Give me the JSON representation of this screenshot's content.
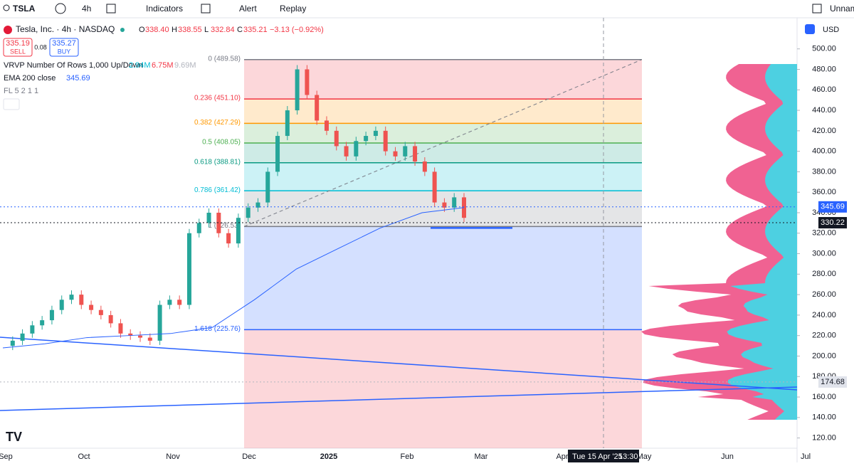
{
  "toolbar": {
    "symbol": "TSLA",
    "interval": "4h",
    "indicators": "Indicators",
    "alert": "Alert",
    "replay": "Replay",
    "layout_name": "Unnam"
  },
  "legend": {
    "title": "Tesla, Inc. · 4h · NASDAQ",
    "ohlc": [
      {
        "label": "O",
        "value": "338.40"
      },
      {
        "label": "H",
        "value": "338.55"
      },
      {
        "label": "L",
        "value": "332.84"
      },
      {
        "label": "C",
        "value": "335.21"
      }
    ],
    "change": "−3.13 (−0.92%)",
    "sell_price": "335.19",
    "sell": "SELL",
    "spread": "0.08",
    "buy_price": "335.27",
    "buy": "BUY",
    "vrvp": "VRVP Number Of Rows 1,000 Up/Down",
    "vrvp_values": [
      "2.94M",
      "6.75M",
      "9.69M"
    ],
    "ema": "EMA 200 close",
    "ema_value": "345.69",
    "fl": "FL 5 2 1 1"
  },
  "currency": "USD",
  "crosshair": {
    "date": "Tue 15 Apr '25",
    "time": "13:30"
  },
  "chart_data": {
    "type": "candlestick",
    "ylim": [
      110,
      513
    ],
    "yticks": [
      {
        "value": 120,
        "label": "120.00"
      },
      {
        "value": 140,
        "label": "140.00"
      },
      {
        "value": 160,
        "label": "160.00"
      },
      {
        "value": 180,
        "label": "180.00"
      },
      {
        "value": 200,
        "label": "200.00"
      },
      {
        "value": 220,
        "label": "220.00"
      },
      {
        "value": 240,
        "label": "240.00"
      },
      {
        "value": 260,
        "label": "260.00"
      },
      {
        "value": 280,
        "label": "280.00"
      },
      {
        "value": 300,
        "label": "300.00"
      },
      {
        "value": 320,
        "label": "320.00"
      },
      {
        "value": 340,
        "label": "340.00"
      },
      {
        "value": 360,
        "label": "360.00"
      },
      {
        "value": 380,
        "label": "380.00"
      },
      {
        "value": 400,
        "label": "400.00"
      },
      {
        "value": 420,
        "label": "420.00"
      },
      {
        "value": 440,
        "label": "440.00"
      },
      {
        "value": 460,
        "label": "460.00"
      },
      {
        "value": 480,
        "label": "480.00"
      },
      {
        "value": 500,
        "label": "500.00"
      }
    ],
    "x_labels": [
      "Sep",
      "Oct",
      "Nov",
      "Dec",
      "2025",
      "Feb",
      "Mar",
      "Apr",
      "May",
      "Jun",
      "Jul"
    ],
    "series": [
      {
        "name": "Price",
        "color_up": "#26a69a",
        "color_down": "#ef5350",
        "values": [
          210,
          215,
          222,
          230,
          235,
          245,
          255,
          260,
          250,
          245,
          240,
          232,
          222,
          220,
          218,
          215,
          250,
          255,
          250,
          320,
          330,
          340,
          320,
          310,
          335,
          345,
          350,
          380,
          415,
          440,
          480,
          455,
          430,
          420,
          405,
          395,
          410,
          415,
          420,
          400,
          395,
          405,
          390,
          380,
          350,
          345,
          355,
          335
        ]
      },
      {
        "name": "EMA 200 close",
        "color": "#2962ff",
        "values": [
          208,
          212,
          218,
          220,
          222,
          228,
          255,
          285,
          305,
          325,
          340,
          345
        ]
      }
    ],
    "fib_levels": [
      {
        "label": "0 (489.58)",
        "value": 489.58,
        "color": "#787b86"
      },
      {
        "label": "0.236 (451.10)",
        "value": 451.1,
        "color": "#f23645"
      },
      {
        "label": "0.382 (427.29)",
        "value": 427.29,
        "color": "#ff9800"
      },
      {
        "label": "0.5 (408.05)",
        "value": 408.05,
        "color": "#4caf50"
      },
      {
        "label": "0.618 (388.81)",
        "value": 388.81,
        "color": "#089981"
      },
      {
        "label": "0.786 (361.42)",
        "value": 361.42,
        "color": "#00bcd4"
      },
      {
        "label": "1 (326.53)",
        "value": 326.53,
        "color": "#787b86"
      },
      {
        "label": "1.618 (225.76)",
        "value": 225.76,
        "color": "#2962ff"
      }
    ],
    "price_tags": [
      {
        "value": 345.69,
        "label": "345.69",
        "color": "#2962ff"
      },
      {
        "value": 330.22,
        "label": "330.22",
        "color": "#131722"
      },
      {
        "value": 174.68,
        "label": "174.68",
        "color": "#e0e3eb"
      }
    ]
  }
}
